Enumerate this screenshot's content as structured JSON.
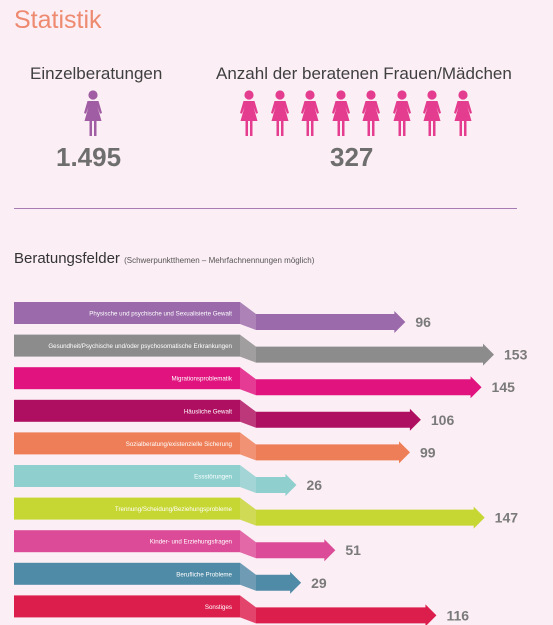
{
  "page_title": "Statistik",
  "stats": {
    "single": {
      "label": "Einzelberatungen",
      "value": "1.495",
      "icon": "woman-icon",
      "icon_count": 1,
      "color": "#a15da3"
    },
    "women": {
      "label": "Anzahl der beratenen Frauen/Mädchen",
      "value": "327",
      "icon": "woman-icon",
      "icon_count": 8,
      "color": "#e43d8f"
    }
  },
  "section": {
    "title": "Beratungsfelder",
    "subtitle": "(Schwerpunktthemen – Mehrfachnennungen möglich)"
  },
  "chart_data": {
    "type": "bar",
    "orientation": "horizontal",
    "categories": [
      "Physische und psychische und Sexualisierte Gewalt",
      "Gesundheit/Psychische und/oder psychosomatische Erkrankungen",
      "Migrationsproblematik",
      "Häusliche Gewalt",
      "Sozialberatung/existenzielle Sicherung",
      "Essstörungen",
      "Trennung/Scheidung/Beziehungsprobleme",
      "Kinder- und Erziehungsfragen",
      "Berufliche Probleme",
      "Sonstiges"
    ],
    "values": [
      96,
      153,
      145,
      106,
      99,
      26,
      147,
      51,
      29,
      116
    ],
    "colors": [
      "#9a6aaa",
      "#8c8c8c",
      "#e0137f",
      "#ae0f60",
      "#ed7e57",
      "#8fd0cf",
      "#c6d632",
      "#dc4b97",
      "#4f8aa6",
      "#dc1e4d"
    ],
    "value_labels": [
      "96",
      "153",
      "145",
      "106",
      "99",
      "26",
      "147",
      "51",
      "29",
      "116"
    ]
  }
}
